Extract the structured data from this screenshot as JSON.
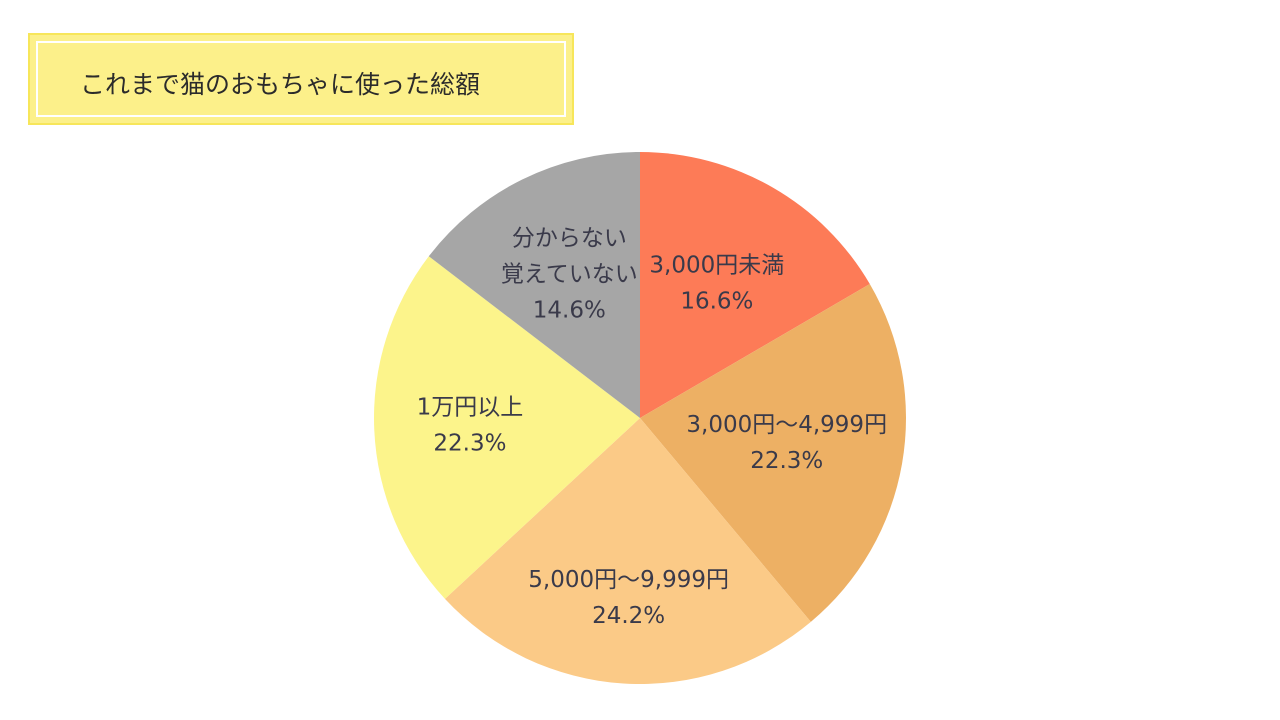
{
  "header": {
    "title": "これまで猫のおもちゃに使った総額"
  },
  "chart_data": {
    "type": "pie",
    "title": "これまで猫のおもちゃに使った総額",
    "start": "12 o'clock",
    "direction": "clockwise",
    "slices": [
      {
        "label": [
          "3,000円未満"
        ],
        "value": 16.6,
        "value_text": "16.6%",
        "color": "#fd7b57"
      },
      {
        "label": [
          "3,000円〜4,999円"
        ],
        "value": 22.3,
        "value_text": "22.3%",
        "color": "#edb064"
      },
      {
        "label": [
          "5,000円〜9,999円"
        ],
        "value": 24.2,
        "value_text": "24.2%",
        "color": "#fbca87"
      },
      {
        "label": [
          "1万円以上"
        ],
        "value": 22.3,
        "value_text": "22.3%",
        "color": "#fcf48b"
      },
      {
        "label": [
          "分からない",
          "覚えていない"
        ],
        "value": 14.6,
        "value_text": "14.6%",
        "color": "#a6a6a6"
      }
    ]
  }
}
